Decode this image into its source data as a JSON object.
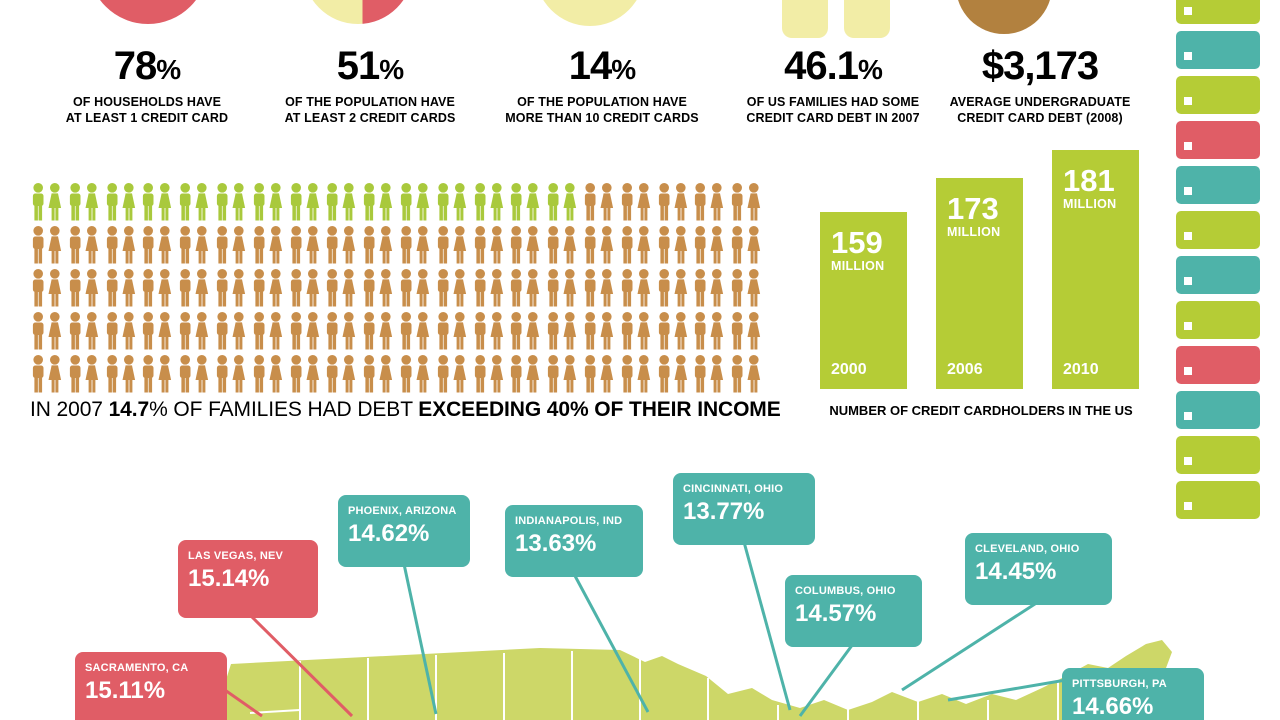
{
  "palette": {
    "lime": "#b5cc36",
    "map_lime": "#cdd768",
    "orange": "#c88e4b",
    "teal": "#4eb3a9",
    "red": "#e05d66",
    "pale_yellow": "#f2eda6",
    "brown": "#b2813f",
    "text": "#000000",
    "white": "#ffffff"
  },
  "stats": [
    {
      "value": "78",
      "suffix": "%",
      "line1": "OF HOUSEHOLDS HAVE",
      "line2": "AT LEAST 1 CREDIT CARD"
    },
    {
      "value": "51",
      "suffix": "%",
      "line1": "OF THE POPULATION HAVE",
      "line2": "AT LEAST 2 CREDIT CARDS"
    },
    {
      "value": "14",
      "suffix": "%",
      "line1": "OF THE POPULATION HAVE",
      "line2": "MORE THAN 10 CREDIT CARDS"
    },
    {
      "value": "46.1",
      "suffix": "%",
      "line1": "OF US FAMILIES HAD SOME",
      "line2": "CREDIT CARD DEBT IN 2007"
    },
    {
      "value": "$3,173",
      "suffix": "",
      "line1": "AVERAGE UNDERGRADUATE",
      "line2": "CREDIT CARD DEBT (2008)"
    }
  ],
  "chart_data": [
    {
      "type": "bar",
      "title": "NUMBER OF CREDIT CARDHOLDERS IN THE US",
      "categories": [
        "2000",
        "2006",
        "2010"
      ],
      "values": [
        159,
        173,
        181
      ],
      "unit": "MILLION",
      "ylim": [
        0,
        190
      ],
      "bar_color": "#b5cc36",
      "label_color": "#ffffff",
      "legend": "none",
      "grid": false
    },
    {
      "type": "pictogram",
      "caption_parts": [
        {
          "text": "IN 2007 ",
          "bold": false
        },
        {
          "text": "14.7",
          "bold": true
        },
        {
          "text": "% OF FAMILIES HAD DEBT ",
          "bold": false
        },
        {
          "text": "EXCEEDING 40% OF THEIR INCOME",
          "bold": true
        }
      ],
      "percent_highlighted": 14.7,
      "total_icons": 100,
      "highlighted_icons": 15,
      "columns": 20,
      "highlight_color": "#a9c93c",
      "base_color": "#c88e4b"
    },
    {
      "type": "map",
      "points": [
        {
          "city": "SACRAMENTO, CA",
          "value": "15.11%",
          "color": "#e05d66"
        },
        {
          "city": "LAS VEGAS, NEV",
          "value": "15.14%",
          "color": "#e05d66"
        },
        {
          "city": "PHOENIX, ARIZONA",
          "value": "14.62%",
          "color": "#4eb3a9"
        },
        {
          "city": "INDIANAPOLIS, IND",
          "value": "13.63%",
          "color": "#4eb3a9"
        },
        {
          "city": "CINCINNATI, OHIO",
          "value": "13.77%",
          "color": "#4eb3a9"
        },
        {
          "city": "COLUMBUS, OHIO",
          "value": "14.57%",
          "color": "#4eb3a9"
        },
        {
          "city": "CLEVELAND, OHIO",
          "value": "14.45%",
          "color": "#4eb3a9"
        },
        {
          "city": "PITTSBURGH, PA",
          "value": "14.66%",
          "color": "#4eb3a9"
        }
      ]
    }
  ],
  "card_stack": {
    "cards": [
      "lime",
      "teal",
      "lime",
      "red",
      "teal",
      "lime",
      "teal",
      "lime",
      "red",
      "teal",
      "lime",
      "lime"
    ]
  }
}
